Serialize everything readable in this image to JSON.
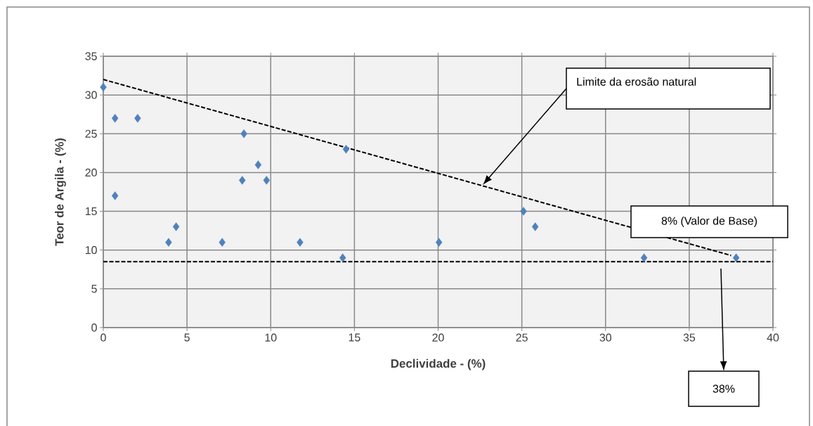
{
  "chart_data": {
    "type": "scatter",
    "xlabel": "Declividade - (%)",
    "ylabel": "Teor de Argila - (%)",
    "xlim": [
      0,
      40
    ],
    "ylim": [
      0,
      35
    ],
    "xticks": [
      0,
      5,
      10,
      15,
      20,
      25,
      30,
      35,
      40
    ],
    "yticks": [
      0,
      5,
      10,
      15,
      20,
      25,
      30,
      35
    ],
    "grid": true,
    "series": [
      {
        "color": "#4f81bd",
        "marker": "diamond",
        "x": [
          0.0,
          0.7,
          2.05,
          0.7,
          3.9,
          4.35,
          7.1,
          8.4,
          8.3,
          9.25,
          9.75,
          11.75,
          14.5,
          14.3,
          20.05,
          25.1,
          25.8,
          32.3,
          37.8
        ],
        "values": [
          31,
          27,
          27,
          17,
          11,
          13,
          11,
          25,
          19,
          21,
          19,
          11,
          23,
          9,
          11,
          15,
          13,
          9,
          9
        ]
      },
      {
        "type": "line",
        "color": "#000000",
        "marker": "none",
        "line_style": "dashed",
        "x": [
          0,
          37.5
        ],
        "values": [
          32,
          9.3
        ]
      }
    ],
    "ref_lines": [
      {
        "axis": "y",
        "value": 8.5,
        "color": "#000000",
        "line_style": "dashed"
      }
    ],
    "annotations": [
      "Limite da erosão natural",
      "8% (Valor de Base)",
      "38%"
    ]
  }
}
